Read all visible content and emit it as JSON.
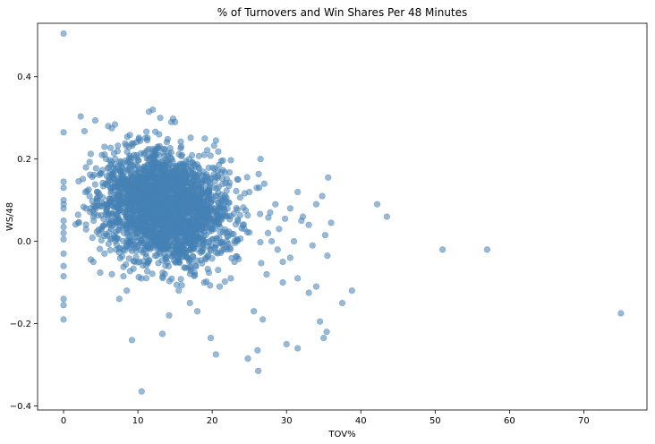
{
  "chart_data": {
    "type": "scatter",
    "title": "% of Turnovers and Win Shares Per 48 Minutes",
    "xlabel": "TOV%",
    "ylabel": "WS/48",
    "xlim": [
      -3.5,
      78.5
    ],
    "ylim": [
      -0.41,
      0.53
    ],
    "xticks": [
      0,
      10,
      20,
      30,
      40,
      50,
      60,
      70
    ],
    "yticks": [
      -0.4,
      -0.2,
      0.0,
      0.2,
      0.4
    ],
    "xtick_labels": [
      "0",
      "10",
      "20",
      "30",
      "40",
      "50",
      "60",
      "70"
    ],
    "ytick_labels": [
      "−0.4",
      "−0.2",
      "0.0",
      "0.2",
      "0.4"
    ],
    "grid": false,
    "point_color": "#4682b4",
    "point_alpha": 0.55,
    "dense_cluster": {
      "x_mean": 13.5,
      "x_sd": 4.2,
      "y_mean": 0.085,
      "y_sd": 0.065,
      "count": 2600,
      "seed": 7
    },
    "points": [
      [
        0,
        0.505
      ],
      [
        0,
        0.265
      ],
      [
        0,
        0.145
      ],
      [
        0,
        0.13
      ],
      [
        0,
        0.1
      ],
      [
        0,
        0.09
      ],
      [
        0,
        0.08
      ],
      [
        0,
        0.05
      ],
      [
        0,
        0.035
      ],
      [
        0,
        0.02
      ],
      [
        0,
        0.005
      ],
      [
        0,
        -0.03
      ],
      [
        0,
        -0.06
      ],
      [
        0,
        -0.085
      ],
      [
        0,
        -0.14
      ],
      [
        0,
        -0.155
      ],
      [
        0,
        -0.19
      ],
      [
        2,
        0.045
      ],
      [
        3,
        0.08
      ],
      [
        3.5,
        0.11
      ],
      [
        4,
        -0.05
      ],
      [
        4.5,
        0.12
      ],
      [
        10.5,
        -0.365
      ],
      [
        9.2,
        -0.24
      ],
      [
        13.3,
        -0.225
      ],
      [
        19.8,
        -0.235
      ],
      [
        20.5,
        -0.275
      ],
      [
        24.8,
        -0.285
      ],
      [
        26.1,
        -0.265
      ],
      [
        26.2,
        -0.315
      ],
      [
        25.6,
        -0.17
      ],
      [
        26.8,
        -0.19
      ],
      [
        30,
        -0.25
      ],
      [
        31.5,
        -0.26
      ],
      [
        34.5,
        -0.195
      ],
      [
        35,
        -0.235
      ],
      [
        35.4,
        -0.22
      ],
      [
        37.5,
        -0.15
      ],
      [
        38.8,
        -0.12
      ],
      [
        34,
        -0.11
      ],
      [
        33,
        -0.125
      ],
      [
        31.5,
        -0.09
      ],
      [
        29.5,
        -0.1
      ],
      [
        29.5,
        -0.05
      ],
      [
        30.5,
        -0.04
      ],
      [
        29,
        0.03
      ],
      [
        31,
        0.0
      ],
      [
        29.8,
        0.055
      ],
      [
        30.5,
        0.08
      ],
      [
        31.5,
        0.12
      ],
      [
        32.2,
        0.06
      ],
      [
        33.5,
        -0.01
      ],
      [
        34,
        0.09
      ],
      [
        34.8,
        0.11
      ],
      [
        35.2,
        0.015
      ],
      [
        35.5,
        -0.035
      ],
      [
        36,
        0.045
      ],
      [
        35.6,
        0.155
      ],
      [
        33,
        0.04
      ],
      [
        32,
        0.05
      ],
      [
        28,
        0.0
      ],
      [
        28.5,
        0.09
      ],
      [
        27,
        0.14
      ],
      [
        26.5,
        0.2
      ],
      [
        28.8,
        -0.02
      ],
      [
        27.5,
        0.02
      ],
      [
        27.8,
        0.07
      ],
      [
        42.2,
        0.09
      ],
      [
        43.5,
        0.06
      ],
      [
        51,
        -0.02
      ],
      [
        57,
        -0.02
      ],
      [
        75,
        -0.175
      ],
      [
        20.5,
        0.245
      ],
      [
        19,
        0.25
      ],
      [
        12,
        0.32
      ],
      [
        11.5,
        0.315
      ],
      [
        13,
        0.3
      ],
      [
        14.5,
        0.29
      ],
      [
        15,
        0.29
      ],
      [
        6,
        0.28
      ],
      [
        6.5,
        0.275
      ],
      [
        25,
        0.12
      ],
      [
        26,
        0.13
      ],
      [
        23.5,
        0.15
      ],
      [
        24.5,
        0.075
      ],
      [
        22,
        -0.02
      ],
      [
        23,
        -0.05
      ],
      [
        22.5,
        -0.09
      ],
      [
        21,
        -0.11
      ],
      [
        18,
        -0.17
      ],
      [
        17,
        -0.15
      ],
      [
        15.5,
        -0.12
      ],
      [
        14.2,
        -0.18
      ],
      [
        7.5,
        -0.14
      ],
      [
        8.5,
        -0.12
      ],
      [
        6.5,
        -0.08
      ],
      [
        5.5,
        -0.03
      ]
    ]
  }
}
